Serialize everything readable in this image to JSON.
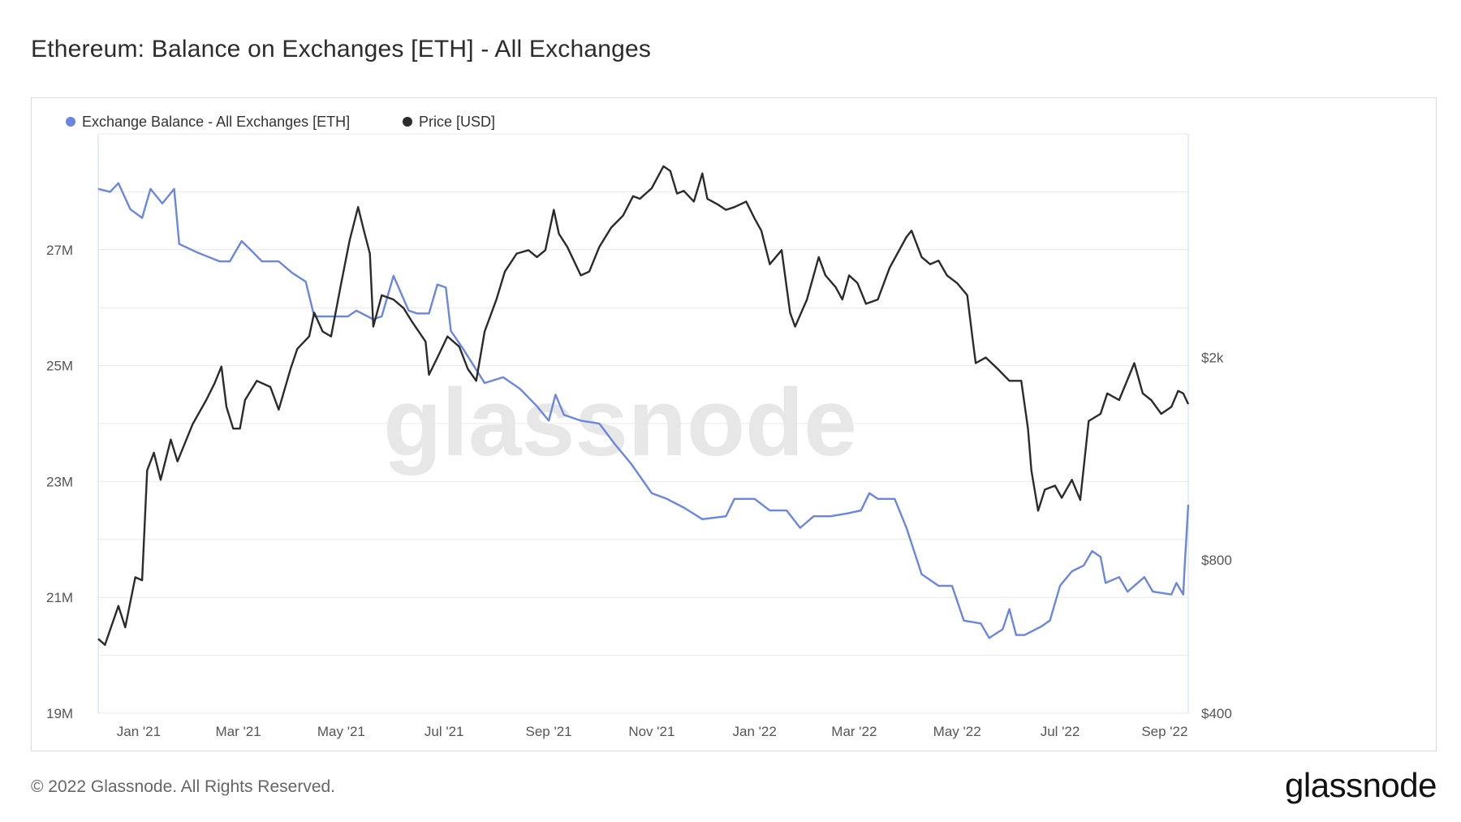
{
  "title": "Ethereum: Balance on Exchanges [ETH] - All Exchanges",
  "footer": "© 2022 Glassnode. All Rights Reserved.",
  "brand": "glassnode",
  "watermark": "glassnode",
  "colors": {
    "balance": "#6b86e0",
    "price": "#2b2b2b",
    "grid": "#e9e9e9",
    "axis": "#cfd9f2"
  },
  "chart_data": {
    "type": "line",
    "title": "Ethereum: Balance on Exchanges [ETH] - All Exchanges",
    "legend_placement": "top-left",
    "grid": true,
    "x_ticks": [
      "Jan '21",
      "Mar '21",
      "May '21",
      "Jul '21",
      "Sep '21",
      "Nov '21",
      "Jan '22",
      "Mar '22",
      "May '22",
      "Jul '22",
      "Sep '22"
    ],
    "x_range": [
      "2020-12-08",
      "2022-09-15"
    ],
    "y_left": {
      "ticks": [
        "19M",
        "21M",
        "23M",
        "25M",
        "27M"
      ],
      "values": [
        19000000,
        21000000,
        23000000,
        25000000,
        27000000
      ],
      "range": [
        19000000,
        29000000
      ]
    },
    "y_right": {
      "scale": "log",
      "ticks": [
        "$400",
        "$800",
        "$2k"
      ],
      "values": [
        400,
        800,
        2000
      ],
      "range": [
        400,
        5500
      ]
    },
    "series": [
      {
        "name": "Exchange Balance - All Exchanges [ETH]",
        "axis": "left",
        "points": [
          [
            "2020-12-08",
            28050000
          ],
          [
            "2020-12-15",
            28000000
          ],
          [
            "2020-12-20",
            28150000
          ],
          [
            "2020-12-27",
            27700000
          ],
          [
            "2021-01-03",
            27550000
          ],
          [
            "2021-01-08",
            28050000
          ],
          [
            "2021-01-15",
            27800000
          ],
          [
            "2021-01-22",
            28050000
          ],
          [
            "2021-01-25",
            27100000
          ],
          [
            "2021-02-05",
            26950000
          ],
          [
            "2021-02-18",
            26800000
          ],
          [
            "2021-02-24",
            26800000
          ],
          [
            "2021-03-03",
            27150000
          ],
          [
            "2021-03-10",
            26950000
          ],
          [
            "2021-03-15",
            26800000
          ],
          [
            "2021-03-25",
            26800000
          ],
          [
            "2021-04-02",
            26600000
          ],
          [
            "2021-04-10",
            26450000
          ],
          [
            "2021-04-15",
            25850000
          ],
          [
            "2021-04-25",
            25850000
          ],
          [
            "2021-05-05",
            25850000
          ],
          [
            "2021-05-10",
            25950000
          ],
          [
            "2021-05-20",
            25800000
          ],
          [
            "2021-05-25",
            25850000
          ],
          [
            "2021-06-01",
            26550000
          ],
          [
            "2021-06-10",
            25950000
          ],
          [
            "2021-06-15",
            25900000
          ],
          [
            "2021-06-22",
            25900000
          ],
          [
            "2021-06-27",
            26400000
          ],
          [
            "2021-07-02",
            26350000
          ],
          [
            "2021-07-05",
            25600000
          ],
          [
            "2021-07-12",
            25300000
          ],
          [
            "2021-07-25",
            24700000
          ],
          [
            "2021-08-05",
            24800000
          ],
          [
            "2021-08-15",
            24600000
          ],
          [
            "2021-08-25",
            24300000
          ],
          [
            "2021-09-01",
            24050000
          ],
          [
            "2021-09-05",
            24500000
          ],
          [
            "2021-09-10",
            24150000
          ],
          [
            "2021-09-20",
            24050000
          ],
          [
            "2021-10-01",
            24000000
          ],
          [
            "2021-10-10",
            23650000
          ],
          [
            "2021-10-20",
            23300000
          ],
          [
            "2021-11-01",
            22800000
          ],
          [
            "2021-11-10",
            22700000
          ],
          [
            "2021-11-20",
            22550000
          ],
          [
            "2021-12-01",
            22350000
          ],
          [
            "2021-12-15",
            22400000
          ],
          [
            "2021-12-20",
            22700000
          ],
          [
            "2022-01-01",
            22700000
          ],
          [
            "2022-01-10",
            22500000
          ],
          [
            "2022-01-20",
            22500000
          ],
          [
            "2022-01-28",
            22200000
          ],
          [
            "2022-02-05",
            22400000
          ],
          [
            "2022-02-15",
            22400000
          ],
          [
            "2022-02-25",
            22450000
          ],
          [
            "2022-03-05",
            22500000
          ],
          [
            "2022-03-10",
            22800000
          ],
          [
            "2022-03-15",
            22700000
          ],
          [
            "2022-03-25",
            22700000
          ],
          [
            "2022-04-01",
            22200000
          ],
          [
            "2022-04-10",
            21400000
          ],
          [
            "2022-04-20",
            21200000
          ],
          [
            "2022-04-28",
            21200000
          ],
          [
            "2022-05-05",
            20600000
          ],
          [
            "2022-05-15",
            20550000
          ],
          [
            "2022-05-20",
            20300000
          ],
          [
            "2022-05-28",
            20450000
          ],
          [
            "2022-06-01",
            20800000
          ],
          [
            "2022-06-05",
            20350000
          ],
          [
            "2022-06-10",
            20350000
          ],
          [
            "2022-06-20",
            20500000
          ],
          [
            "2022-06-25",
            20600000
          ],
          [
            "2022-07-01",
            21200000
          ],
          [
            "2022-07-08",
            21450000
          ],
          [
            "2022-07-15",
            21550000
          ],
          [
            "2022-07-20",
            21800000
          ],
          [
            "2022-07-25",
            21700000
          ],
          [
            "2022-07-28",
            21250000
          ],
          [
            "2022-08-05",
            21350000
          ],
          [
            "2022-08-10",
            21100000
          ],
          [
            "2022-08-20",
            21350000
          ],
          [
            "2022-08-25",
            21100000
          ],
          [
            "2022-09-05",
            21050000
          ],
          [
            "2022-09-08",
            21250000
          ],
          [
            "2022-09-12",
            21050000
          ],
          [
            "2022-09-13",
            21600000
          ],
          [
            "2022-09-15",
            22600000
          ]
        ]
      },
      {
        "name": "Price [USD]",
        "axis": "right",
        "points": [
          [
            "2020-12-08",
            560
          ],
          [
            "2020-12-12",
            545
          ],
          [
            "2020-12-20",
            650
          ],
          [
            "2020-12-24",
            590
          ],
          [
            "2020-12-30",
            740
          ],
          [
            "2021-01-03",
            730
          ],
          [
            "2021-01-06",
            1200
          ],
          [
            "2021-01-10",
            1300
          ],
          [
            "2021-01-14",
            1150
          ],
          [
            "2021-01-20",
            1380
          ],
          [
            "2021-01-24",
            1250
          ],
          [
            "2021-02-02",
            1480
          ],
          [
            "2021-02-10",
            1650
          ],
          [
            "2021-02-15",
            1780
          ],
          [
            "2021-02-19",
            1920
          ],
          [
            "2021-02-22",
            1600
          ],
          [
            "2021-02-26",
            1450
          ],
          [
            "2021-03-02",
            1450
          ],
          [
            "2021-03-05",
            1650
          ],
          [
            "2021-03-12",
            1800
          ],
          [
            "2021-03-20",
            1750
          ],
          [
            "2021-03-25",
            1580
          ],
          [
            "2021-04-01",
            1900
          ],
          [
            "2021-04-05",
            2080
          ],
          [
            "2021-04-12",
            2200
          ],
          [
            "2021-04-15",
            2450
          ],
          [
            "2021-04-20",
            2250
          ],
          [
            "2021-04-25",
            2200
          ],
          [
            "2021-05-01",
            2800
          ],
          [
            "2021-05-06",
            3400
          ],
          [
            "2021-05-11",
            3950
          ],
          [
            "2021-05-14",
            3600
          ],
          [
            "2021-05-18",
            3200
          ],
          [
            "2021-05-20",
            2300
          ],
          [
            "2021-05-25",
            2650
          ],
          [
            "2021-06-01",
            2600
          ],
          [
            "2021-06-07",
            2500
          ],
          [
            "2021-06-12",
            2350
          ],
          [
            "2021-06-20",
            2150
          ],
          [
            "2021-06-22",
            1850
          ],
          [
            "2021-06-27",
            2000
          ],
          [
            "2021-07-03",
            2200
          ],
          [
            "2021-07-10",
            2100
          ],
          [
            "2021-07-15",
            1900
          ],
          [
            "2021-07-20",
            1800
          ],
          [
            "2021-07-25",
            2250
          ],
          [
            "2021-08-01",
            2600
          ],
          [
            "2021-08-06",
            2950
          ],
          [
            "2021-08-13",
            3200
          ],
          [
            "2021-08-20",
            3250
          ],
          [
            "2021-08-25",
            3150
          ],
          [
            "2021-08-30",
            3250
          ],
          [
            "2021-09-04",
            3900
          ],
          [
            "2021-09-07",
            3500
          ],
          [
            "2021-09-12",
            3300
          ],
          [
            "2021-09-20",
            2900
          ],
          [
            "2021-09-25",
            2950
          ],
          [
            "2021-10-01",
            3300
          ],
          [
            "2021-10-08",
            3600
          ],
          [
            "2021-10-15",
            3800
          ],
          [
            "2021-10-21",
            4150
          ],
          [
            "2021-10-25",
            4100
          ],
          [
            "2021-11-01",
            4300
          ],
          [
            "2021-11-08",
            4750
          ],
          [
            "2021-11-12",
            4650
          ],
          [
            "2021-11-16",
            4200
          ],
          [
            "2021-11-20",
            4250
          ],
          [
            "2021-11-26",
            4050
          ],
          [
            "2021-12-01",
            4600
          ],
          [
            "2021-12-04",
            4100
          ],
          [
            "2021-12-10",
            4000
          ],
          [
            "2021-12-15",
            3900
          ],
          [
            "2021-12-20",
            3950
          ],
          [
            "2021-12-27",
            4050
          ],
          [
            "2022-01-01",
            3750
          ],
          [
            "2022-01-05",
            3550
          ],
          [
            "2022-01-10",
            3050
          ],
          [
            "2022-01-17",
            3250
          ],
          [
            "2022-01-22",
            2450
          ],
          [
            "2022-01-25",
            2300
          ],
          [
            "2022-02-01",
            2600
          ],
          [
            "2022-02-08",
            3150
          ],
          [
            "2022-02-12",
            2900
          ],
          [
            "2022-02-18",
            2750
          ],
          [
            "2022-02-22",
            2600
          ],
          [
            "2022-02-26",
            2900
          ],
          [
            "2022-03-03",
            2800
          ],
          [
            "2022-03-08",
            2550
          ],
          [
            "2022-03-15",
            2600
          ],
          [
            "2022-03-22",
            3000
          ],
          [
            "2022-04-01",
            3450
          ],
          [
            "2022-04-04",
            3550
          ],
          [
            "2022-04-10",
            3150
          ],
          [
            "2022-04-15",
            3050
          ],
          [
            "2022-04-20",
            3100
          ],
          [
            "2022-04-25",
            2900
          ],
          [
            "2022-05-01",
            2800
          ],
          [
            "2022-05-07",
            2650
          ],
          [
            "2022-05-10",
            2200
          ],
          [
            "2022-05-12",
            1950
          ],
          [
            "2022-05-18",
            2000
          ],
          [
            "2022-05-25",
            1900
          ],
          [
            "2022-06-01",
            1800
          ],
          [
            "2022-06-08",
            1800
          ],
          [
            "2022-06-12",
            1450
          ],
          [
            "2022-06-14",
            1200
          ],
          [
            "2022-06-18",
            1000
          ],
          [
            "2022-06-22",
            1100
          ],
          [
            "2022-06-28",
            1120
          ],
          [
            "2022-07-02",
            1060
          ],
          [
            "2022-07-08",
            1150
          ],
          [
            "2022-07-13",
            1050
          ],
          [
            "2022-07-18",
            1500
          ],
          [
            "2022-07-25",
            1550
          ],
          [
            "2022-07-29",
            1700
          ],
          [
            "2022-08-05",
            1650
          ],
          [
            "2022-08-14",
            1950
          ],
          [
            "2022-08-19",
            1700
          ],
          [
            "2022-08-24",
            1650
          ],
          [
            "2022-08-30",
            1550
          ],
          [
            "2022-09-05",
            1600
          ],
          [
            "2022-09-09",
            1720
          ],
          [
            "2022-09-12",
            1700
          ],
          [
            "2022-09-15",
            1620
          ]
        ]
      }
    ]
  }
}
